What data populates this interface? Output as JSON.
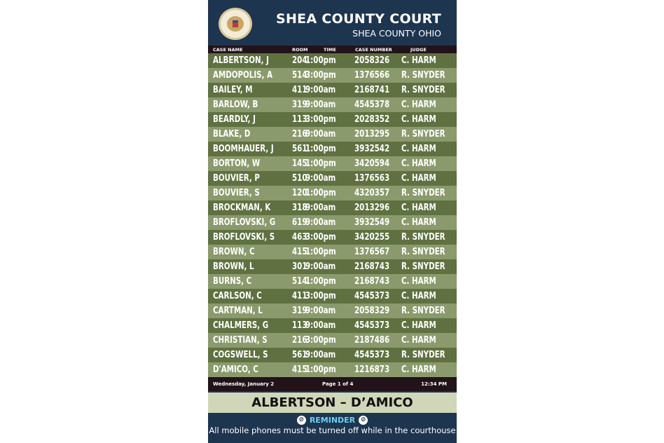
{
  "header": {
    "title": "SHEA COUNTY COURT",
    "subtitle": "SHEA COUNTY OHIO"
  },
  "columns": [
    "CASE NAME",
    "ROOM",
    "TIME",
    "CASE NUMBER",
    "JUDGE"
  ],
  "rows": [
    [
      "ALBERTSON, J",
      "204",
      "1:00pm",
      "2058326",
      "C. HARM"
    ],
    [
      "AMDOPOLIS, A",
      "514",
      "3:00pm",
      "1376566",
      "R. SNYDER"
    ],
    [
      "BAILEY, M",
      "411",
      "9:00am",
      "2168741",
      "R. SNYDER"
    ],
    [
      "BARLOW, B",
      "319",
      "9:00am",
      "4545378",
      "C. HARM"
    ],
    [
      "BEARDLY, J",
      "113",
      "3:00pm",
      "2028352",
      "C. HARM"
    ],
    [
      "BLAKE, D",
      "216",
      "9:00am",
      "2013295",
      "R. SNYDER"
    ],
    [
      "BOOMHAUER, J",
      "561",
      "1:00pm",
      "3932542",
      "C. HARM"
    ],
    [
      "BORTON, W",
      "145",
      "1:00pm",
      "3420594",
      "C. HARM"
    ],
    [
      "BOUVIER, P",
      "510",
      "9:00am",
      "1376563",
      "C. HARM"
    ],
    [
      "BOUVIER, S",
      "120",
      "1:00pm",
      "4320357",
      "R. SNYDER"
    ],
    [
      "BROCKMAN, K",
      "318",
      "9:00am",
      "2013296",
      "C. HARM"
    ],
    [
      "BROFLOVSKI, G",
      "619",
      "9:00am",
      "3932549",
      "C. HARM"
    ],
    [
      "BROFLOVSKI, S",
      "463",
      "3:00pm",
      "3420255",
      "R. SNYDER"
    ],
    [
      "BROWN, C",
      "415",
      "1:00pm",
      "1376567",
      "R. SNYDER"
    ],
    [
      "BROWN, L",
      "301",
      "9:00am",
      "2168743",
      "R. SNYDER"
    ],
    [
      "BURNS, C",
      "514",
      "1:00pm",
      "2168743",
      "C. HARM"
    ],
    [
      "CARLSON, C",
      "411",
      "3:00pm",
      "4545373",
      "C. HARM"
    ],
    [
      "CARTMAN, L",
      "319",
      "9:00am",
      "2058329",
      "R. SNYDER"
    ],
    [
      "CHALMERS, G",
      "113",
      "9:00am",
      "4545373",
      "C. HARM"
    ],
    [
      "CHRISTIAN, S",
      "216",
      "3:00pm",
      "2187486",
      "C. HARM"
    ],
    [
      "COGSWELL, S",
      "561",
      "9:00am",
      "4545373",
      "R. SNYDER"
    ],
    [
      "D'AMICO, C",
      "415",
      "1:00pm",
      "1216873",
      "C. HARM"
    ]
  ],
  "footer": {
    "date": "Wednesday, January 2",
    "page": "Page 1 of 4",
    "time": "12:34 PM"
  },
  "range": "ALBERTSON – D’AMICO",
  "reminder": {
    "label": "REMINDER",
    "text": "All mobile phones must be turned off while in the courthouse",
    "icon": "no-phone-icon"
  },
  "colors": {
    "navy": "#1e3550",
    "row_dark": "#5f7140",
    "row_light": "#8a9a6c",
    "accent": "#6ad0f0"
  }
}
